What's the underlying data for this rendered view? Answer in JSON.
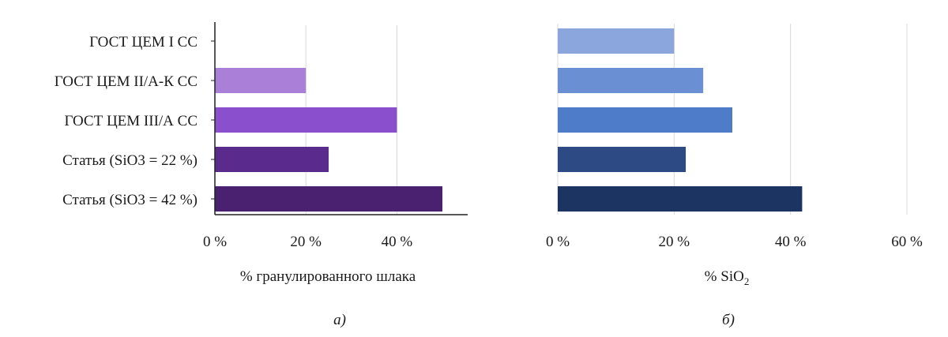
{
  "chart_data": [
    {
      "type": "bar",
      "orientation": "horizontal",
      "categories": [
        "ГОСТ ЦЕМ I СС",
        "ГОСТ ЦЕМ II/А-К СС",
        "ГОСТ ЦЕМ III/А СС",
        "Статья (SiO3 = 22 %)",
        "Статья (SiO3 = 42 %)"
      ],
      "values": [
        0,
        20,
        40,
        25,
        50
      ],
      "colors": [
        "#b08ad9",
        "#a97fd8",
        "#8a4fcc",
        "#5a2b8c",
        "#4a2170"
      ],
      "xlabel": "% гранулированного шлака",
      "xticks": [
        "0 %",
        "20 %",
        "40 %"
      ],
      "xlim": [
        0,
        55
      ],
      "grid": true,
      "caption": "а)"
    },
    {
      "type": "bar",
      "orientation": "horizontal",
      "categories": [
        "ГОСТ ЦЕМ I СС",
        "ГОСТ ЦЕМ II/А-К СС",
        "ГОСТ ЦЕМ III/А СС",
        "Статья (SiO3 = 22 %)",
        "Статья (SiO3 = 42 %)"
      ],
      "values": [
        20,
        25,
        30,
        22,
        42
      ],
      "colors": [
        "#8aa6dd",
        "#6a8fd3",
        "#4f7cc9",
        "#2d4a85",
        "#1c3461"
      ],
      "xlabel_main": "% SiO",
      "xlabel_sub": "2",
      "xticks": [
        "0 %",
        "20 %",
        "40 %",
        "60 %"
      ],
      "xlim": [
        0,
        60
      ],
      "grid": true,
      "caption": "б)"
    }
  ]
}
